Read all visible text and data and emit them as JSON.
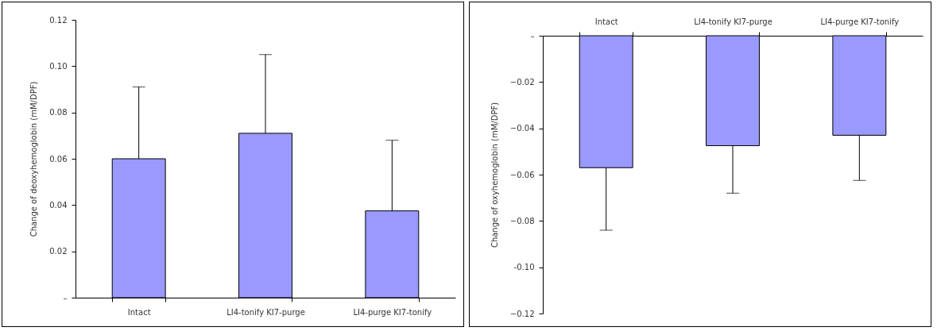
{
  "chart_data": [
    {
      "type": "bar",
      "ylabel": "Change of deoxyhemoglobin (mM/DPF)",
      "categories": [
        "Intact",
        "LI4-tonify KI7-purge",
        "LI4-purge KI7-tonify"
      ],
      "values": [
        0.06,
        0.071,
        0.0375
      ],
      "color": "#9999ff",
      "errors": [
        [
          0.06,
          0.091
        ],
        [
          0.071,
          0.105
        ],
        [
          0.0375,
          0.068
        ]
      ],
      "ylim": [
        0,
        0.12
      ],
      "yticks": [
        {
          "value": 0,
          "label": "–"
        },
        0.02,
        0.04,
        0.06,
        0.08,
        {
          "value": 0.1,
          "label": "0.10"
        },
        0.12
      ],
      "grid": false
    },
    {
      "type": "bar",
      "ylabel": "Change of oxyhemoglobin (mM/DPF)",
      "categories": [
        "Intact",
        "LI4-tonify KI7-purge",
        "LI4-purge KI7-tonify"
      ],
      "values": [
        -0.057,
        -0.0475,
        -0.043
      ],
      "color": "#9999ff",
      "errors": [
        [
          -0.084,
          -0.057
        ],
        [
          -0.068,
          -0.0475
        ],
        [
          -0.0625,
          -0.043
        ]
      ],
      "ylim": [
        -0.12,
        0
      ],
      "yticks": [
        {
          "value": 0,
          "label": "–"
        },
        -0.02,
        -0.04,
        -0.06,
        -0.08,
        {
          "value": -0.1,
          "label": "-0.10"
        },
        -0.12
      ],
      "grid": false
    }
  ]
}
